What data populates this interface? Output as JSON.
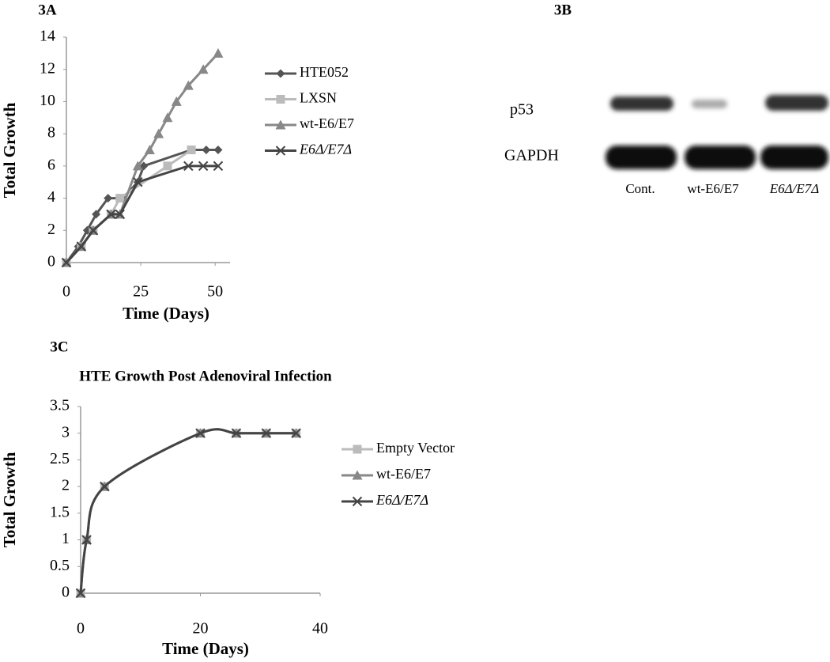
{
  "panel_labels": [
    "3A",
    "3B",
    "3C"
  ],
  "chart_data": [
    {
      "type": "line",
      "xlabel": "Time (Days)",
      "ylabel": "Total Growth",
      "xlim": [
        0,
        55
      ],
      "xticks": [
        0,
        25,
        50
      ],
      "ylim": [
        0,
        14
      ],
      "yticks": [
        0,
        2,
        4,
        6,
        8,
        10,
        12,
        14
      ],
      "series": [
        {
          "name": "HTE052",
          "color": "#555555",
          "marker": "diamond",
          "x": [
            0,
            4,
            7,
            10,
            14,
            19,
            24,
            26,
            42,
            47,
            51
          ],
          "values": [
            0,
            1,
            2,
            3,
            4,
            4,
            5,
            6,
            7,
            7,
            7
          ]
        },
        {
          "name": "LXSN",
          "color": "#bbbbbb",
          "marker": "square",
          "x": [
            0,
            5,
            9,
            15,
            18,
            34,
            42
          ],
          "values": [
            0,
            1,
            2,
            3,
            4,
            6,
            7
          ]
        },
        {
          "name": "wt-E6/E7",
          "color": "#888888",
          "marker": "triangle",
          "x": [
            0,
            5,
            9,
            15,
            18,
            24,
            28,
            31,
            34,
            37,
            41,
            46,
            51
          ],
          "values": [
            0,
            1,
            2,
            3,
            3,
            6,
            7,
            8,
            9,
            10,
            11,
            12,
            13
          ]
        },
        {
          "name": "E6Δ/E7Δ",
          "color": "#444444",
          "marker": "x",
          "x": [
            0,
            5,
            9,
            15,
            18,
            24,
            41,
            46,
            51
          ],
          "values": [
            0,
            1,
            2,
            3,
            3,
            5,
            6,
            6,
            6
          ]
        }
      ]
    },
    {
      "type": "line",
      "title": "HTE Growth Post Adenoviral Infection",
      "xlabel": "Time (Days)",
      "ylabel": "Total Growth",
      "smooth": true,
      "xlim": [
        0,
        40
      ],
      "xticks": [
        0,
        20,
        40
      ],
      "ylim": [
        0,
        3.5
      ],
      "yticks": [
        0,
        0.5,
        1,
        1.5,
        2,
        2.5,
        3,
        3.5
      ],
      "series": [
        {
          "name": "Empty Vector",
          "color": "#bbbbbb",
          "marker": "square",
          "x": [
            0,
            1,
            4,
            20,
            26,
            31,
            36
          ],
          "values": [
            0,
            1,
            2,
            3,
            3,
            3,
            3
          ]
        },
        {
          "name": "wt-E6/E7",
          "color": "#888888",
          "marker": "triangle",
          "x": [
            0,
            1,
            4,
            20,
            26,
            31,
            36
          ],
          "values": [
            0,
            1,
            2,
            3,
            3,
            3,
            3
          ]
        },
        {
          "name": "E6Δ/E7Δ",
          "color": "#444444",
          "marker": "x",
          "x": [
            0,
            1,
            4,
            20,
            26,
            31,
            36
          ],
          "values": [
            0,
            1,
            2,
            3,
            3,
            3,
            3
          ]
        }
      ]
    }
  ],
  "blot": {
    "rows": [
      "p53",
      "GAPDH"
    ],
    "lanes": [
      "Cont.",
      "wt-E6/E7",
      "E6Δ/E7Δ"
    ]
  }
}
